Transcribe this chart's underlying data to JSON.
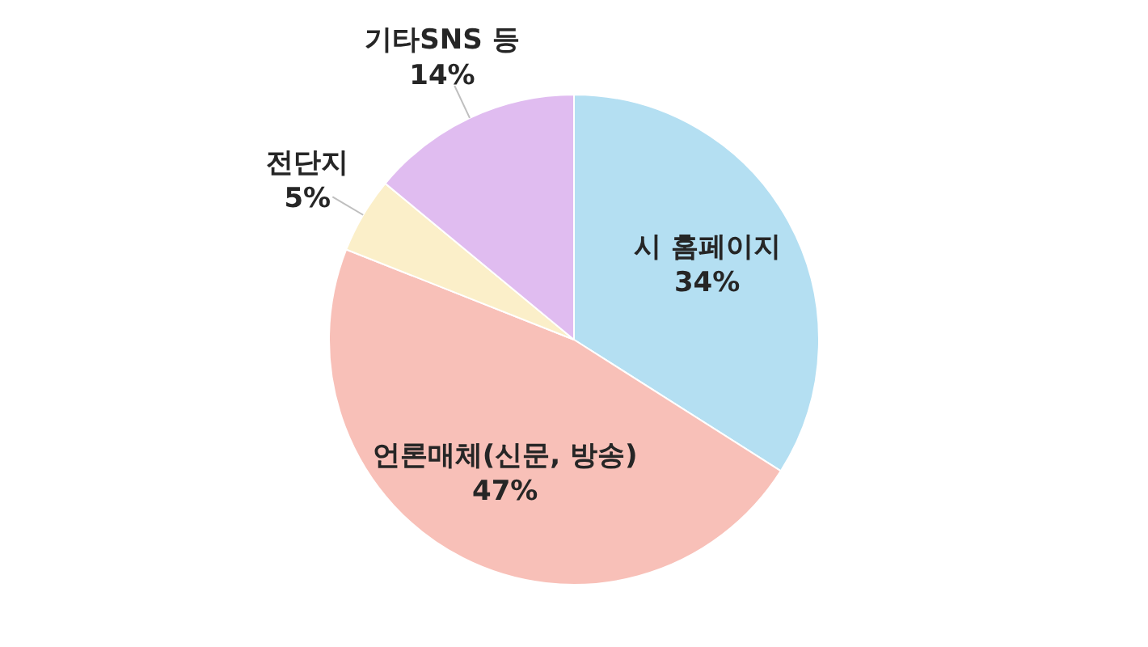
{
  "chart_data": {
    "type": "pie",
    "categories": [
      "시 홈페이지",
      "언론매체(신문, 방송)",
      "전단지",
      "기타SNS 등"
    ],
    "values": [
      34,
      47,
      5,
      14
    ],
    "value_labels": [
      "34%",
      "47%",
      "5%",
      "14%"
    ],
    "colors": [
      "#b4dff2",
      "#f8c0b8",
      "#fbefc9",
      "#e0bcf0"
    ],
    "legend": false
  }
}
